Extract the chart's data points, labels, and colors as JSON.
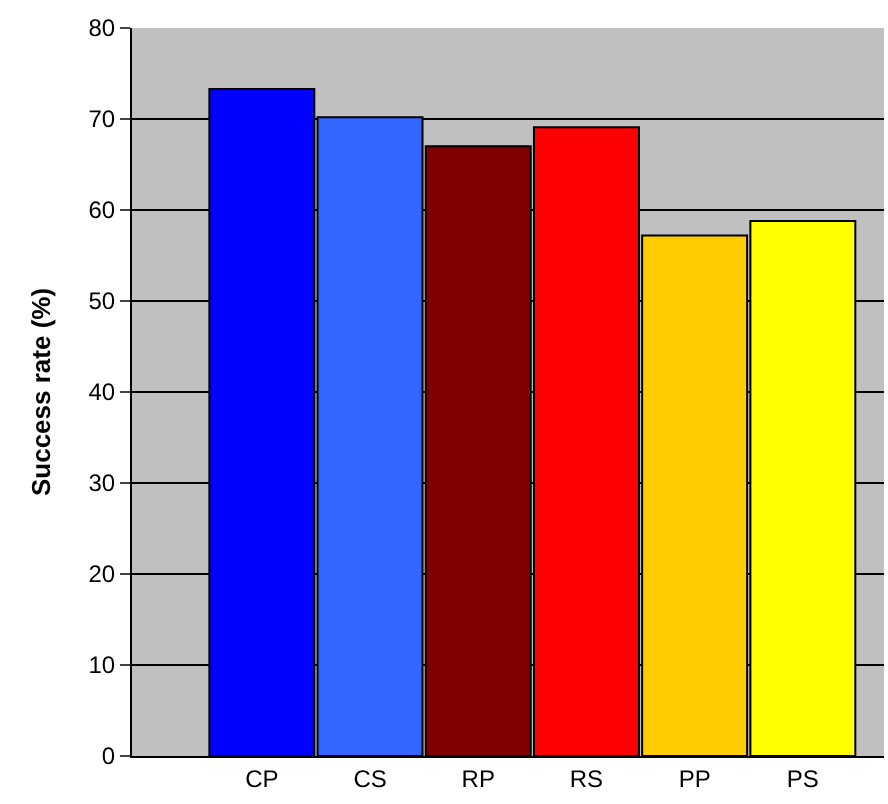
{
  "chart_data": {
    "type": "bar",
    "ylabel": "Success rate (%)",
    "categories": [
      "CP",
      "CS",
      "RP",
      "RS",
      "PP",
      "PS"
    ],
    "values": [
      73.3,
      70.2,
      67.0,
      69.1,
      57.2,
      58.8
    ],
    "colors": [
      "#0000ff",
      "#3366ff",
      "#800000",
      "#ff0000",
      "#ffcc00",
      "#ffff00"
    ],
    "ylim": [
      0,
      80
    ],
    "yticks": [
      0,
      10,
      20,
      30,
      40,
      50,
      60,
      70,
      80
    ],
    "grid": "y"
  }
}
